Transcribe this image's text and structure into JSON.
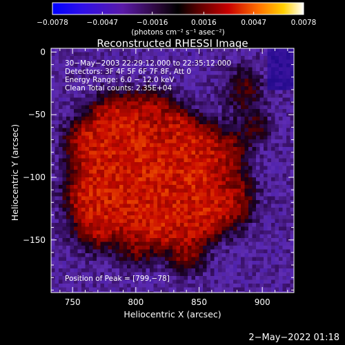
{
  "chart_data": {
    "type": "heatmap",
    "title": "Reconstructed RHESSI Image",
    "xlabel": "Heliocentric X (arcsec)",
    "ylabel": "Heliocentric Y (arcsec)",
    "xlim": [
      733,
      925
    ],
    "ylim": [
      -192,
      3
    ],
    "x_ticks": [
      {
        "value": 750,
        "label": "750"
      },
      {
        "value": 800,
        "label": "800"
      },
      {
        "value": 850,
        "label": "850"
      },
      {
        "value": 900,
        "label": "900"
      }
    ],
    "y_ticks": [
      {
        "value": 0,
        "label": "0"
      },
      {
        "value": -50,
        "label": "−50"
      },
      {
        "value": -100,
        "label": "−100"
      },
      {
        "value": -150,
        "label": "−150"
      }
    ],
    "colorbar": {
      "min": -0.0078,
      "max": 0.0078,
      "tick_values": [
        -0.0078,
        -0.0047,
        -0.0016,
        0.0016,
        0.0047,
        0.0078
      ],
      "tick_labels": [
        "−0.0078",
        "−0.0047",
        "−0.0016",
        "0.0016",
        "0.0047",
        "0.0078"
      ],
      "unit_label": "(photons cm⁻² s⁻¹ asec⁻²)"
    },
    "annotations": [
      "30−May−2003 22:29:12.000 to 22:35:12.000",
      "Detectors: 3F 4F 5F 6F 7F 8F, Att 0",
      "Energy Range: 6.0 − 12.0 keV",
      "Clean     Total counts: 2.35E+04"
    ],
    "peak_label": "Position of Peak = [799,−78]",
    "peak": [
      799,
      -78
    ]
  },
  "footer": {
    "date_stamp": "2−May−2022 01:18"
  }
}
